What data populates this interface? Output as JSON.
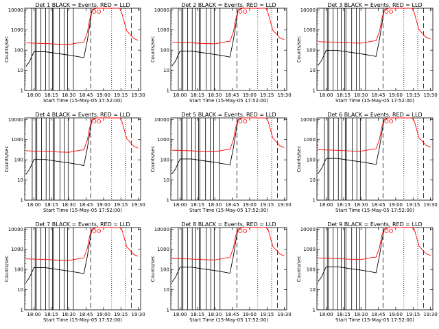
{
  "chart_data": {
    "type": "line",
    "panel_titles": [
      "Det  1  BLACK = Events, RED = LLD",
      "Det  2  BLACK = Events, RED = LLD",
      "Det  3  BLACK = Events, RED = LLD",
      "Det  4  BLACK = Events, RED = LLD",
      "Det  5  BLACK = Events, RED = LLD",
      "Det  6  BLACK = Events, RED = LLD",
      "Det  7  BLACK = Events, RED = LLD",
      "Det  8  BLACK = Events, RED = LLD",
      "Det  9  BLACK = Events, RED = LLD"
    ],
    "xlabel": "Start Time (15-May-05 17:52:00)",
    "ylabel": "Counts/sec",
    "x_tick_labels": [
      "18:00",
      "18:15",
      "18:30",
      "18:45",
      "19:00",
      "19:15",
      "19:30"
    ],
    "x_tick_minutes": [
      0,
      15,
      30,
      45,
      60,
      75,
      90
    ],
    "y_tick_labels": [
      "1",
      "10",
      "100",
      "1000",
      "10000"
    ],
    "y_tick_values": [
      1,
      10,
      100,
      1000,
      10000
    ],
    "ylim": [
      1,
      12000
    ],
    "xlim_minutes": [
      -8,
      92
    ],
    "yscale": "log",
    "series_colors": {
      "events": "#000000",
      "lld": "#ff0000"
    },
    "vlines_solid": [
      -2,
      1,
      2,
      6,
      10,
      13,
      16,
      17,
      22,
      26,
      29,
      34
    ],
    "vlines_dashed": [
      49,
      84
    ],
    "vlines_dotted": [
      67,
      79
    ],
    "series": [
      {
        "name": "events",
        "points": [
          [
            -7,
            20
          ],
          [
            -4,
            35
          ],
          [
            0,
            110
          ],
          [
            10,
            110
          ],
          [
            20,
            90
          ],
          [
            30,
            75
          ],
          [
            40,
            60
          ],
          [
            43,
            55
          ],
          [
            46,
            400
          ],
          [
            48,
            2000
          ],
          [
            50,
            10000
          ],
          [
            54,
            12000
          ]
        ]
      },
      {
        "name": "lld",
        "points": [
          [
            -7,
            300
          ],
          [
            0,
            290
          ],
          [
            10,
            280
          ],
          [
            20,
            260
          ],
          [
            30,
            250
          ],
          [
            40,
            320
          ],
          [
            43,
            330
          ],
          [
            46,
            1000
          ],
          [
            48,
            4000
          ],
          [
            50,
            10000
          ],
          [
            54,
            12000
          ],
          [
            74,
            12000
          ],
          [
            76,
            8000
          ],
          [
            80,
            1200
          ],
          [
            86,
            500
          ],
          [
            90,
            400
          ]
        ]
      }
    ]
  }
}
